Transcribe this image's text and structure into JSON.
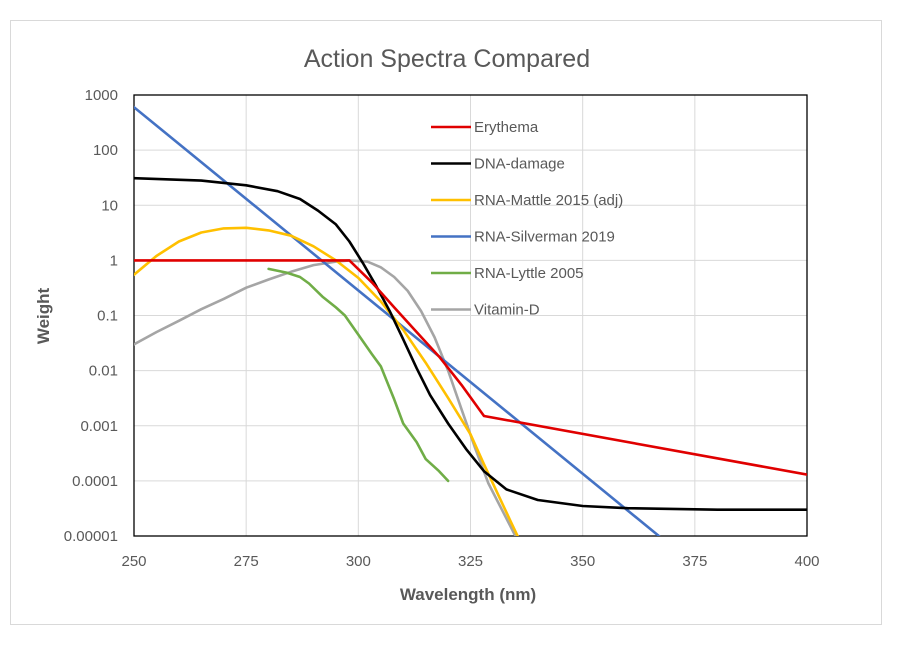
{
  "chart_data": {
    "type": "line",
    "title": "Action Spectra Compared",
    "xlabel": "Wavelength (nm)",
    "ylabel": "Weight",
    "x_scale": "linear",
    "y_scale": "log",
    "xlim": [
      250,
      400
    ],
    "ylim": [
      1e-05,
      1000
    ],
    "x_ticks": [
      "250",
      "275",
      "300",
      "325",
      "350",
      "375",
      "400"
    ],
    "y_ticks": [
      "1000",
      "100",
      "10",
      "1",
      "0.1",
      "0.01",
      "0.001",
      "0.0001",
      "0.00001"
    ],
    "grid": true,
    "legend_position": "top-right",
    "series": [
      {
        "name": "Erythema",
        "color": "#e00000",
        "points": [
          [
            250,
            1
          ],
          [
            298,
            1
          ],
          [
            303,
            0.4
          ],
          [
            308,
            0.14
          ],
          [
            313,
            0.05
          ],
          [
            318,
            0.018
          ],
          [
            323,
            0.0055
          ],
          [
            328,
            0.0015
          ],
          [
            400,
            0.00013
          ]
        ]
      },
      {
        "name": "DNA-damage",
        "color": "#000000",
        "points": [
          [
            250,
            31
          ],
          [
            265,
            28
          ],
          [
            275,
            23
          ],
          [
            282,
            18
          ],
          [
            287,
            13
          ],
          [
            291,
            8
          ],
          [
            295,
            4.5
          ],
          [
            298,
            2.2
          ],
          [
            301,
            0.9
          ],
          [
            304,
            0.34
          ],
          [
            307,
            0.12
          ],
          [
            310,
            0.037
          ],
          [
            313,
            0.011
          ],
          [
            316,
            0.0036
          ],
          [
            320,
            0.0011
          ],
          [
            324,
            0.00038
          ],
          [
            328,
            0.00015
          ],
          [
            333,
            7e-05
          ],
          [
            340,
            4.5e-05
          ],
          [
            350,
            3.5e-05
          ],
          [
            360,
            3.2e-05
          ],
          [
            380,
            3e-05
          ],
          [
            400,
            3e-05
          ]
        ]
      },
      {
        "name": "RNA-Mattle 2015 (adj)",
        "color": "#ffc000",
        "points": [
          [
            250,
            0.55
          ],
          [
            255,
            1.2
          ],
          [
            260,
            2.2
          ],
          [
            265,
            3.2
          ],
          [
            270,
            3.8
          ],
          [
            275,
            3.9
          ],
          [
            280,
            3.5
          ],
          [
            285,
            2.8
          ],
          [
            290,
            1.8
          ],
          [
            295,
            1.0
          ],
          [
            300,
            0.48
          ],
          [
            305,
            0.18
          ],
          [
            310,
            0.055
          ],
          [
            315,
            0.014
          ],
          [
            320,
            0.0032
          ],
          [
            325,
            0.0007
          ],
          [
            328,
            0.0002
          ],
          [
            331,
            6e-05
          ],
          [
            334,
            1.8e-05
          ],
          [
            335.5,
            1e-05
          ]
        ]
      },
      {
        "name": "RNA-Silverman 2019",
        "color": "#4472c4",
        "points": [
          [
            250,
            600
          ],
          [
            367,
            1e-05
          ]
        ]
      },
      {
        "name": "RNA-Lyttle 2005",
        "color": "#70ad47",
        "points": [
          [
            280,
            0.7
          ],
          [
            284,
            0.6
          ],
          [
            287,
            0.5
          ],
          [
            289,
            0.38
          ],
          [
            292,
            0.22
          ],
          [
            295,
            0.14
          ],
          [
            297,
            0.1
          ],
          [
            300,
            0.045
          ],
          [
            303,
            0.02
          ],
          [
            305,
            0.012
          ],
          [
            308,
            0.003
          ],
          [
            310,
            0.0011
          ],
          [
            313,
            0.0005
          ],
          [
            315,
            0.00025
          ],
          [
            318,
            0.00015
          ],
          [
            320,
            0.0001
          ]
        ]
      },
      {
        "name": "Vitamin-D",
        "color": "#a5a5a5",
        "points": [
          [
            250,
            0.03
          ],
          [
            255,
            0.05
          ],
          [
            260,
            0.08
          ],
          [
            265,
            0.13
          ],
          [
            270,
            0.2
          ],
          [
            275,
            0.32
          ],
          [
            280,
            0.45
          ],
          [
            285,
            0.62
          ],
          [
            290,
            0.82
          ],
          [
            295,
            0.95
          ],
          [
            298,
            1.0
          ],
          [
            302,
            0.95
          ],
          [
            305,
            0.75
          ],
          [
            308,
            0.5
          ],
          [
            311,
            0.28
          ],
          [
            314,
            0.12
          ],
          [
            317,
            0.04
          ],
          [
            320,
            0.01
          ],
          [
            323,
            0.002
          ],
          [
            326,
            0.0004
          ],
          [
            329,
            9e-05
          ],
          [
            332,
            3e-05
          ],
          [
            335,
            1e-05
          ]
        ]
      }
    ]
  }
}
